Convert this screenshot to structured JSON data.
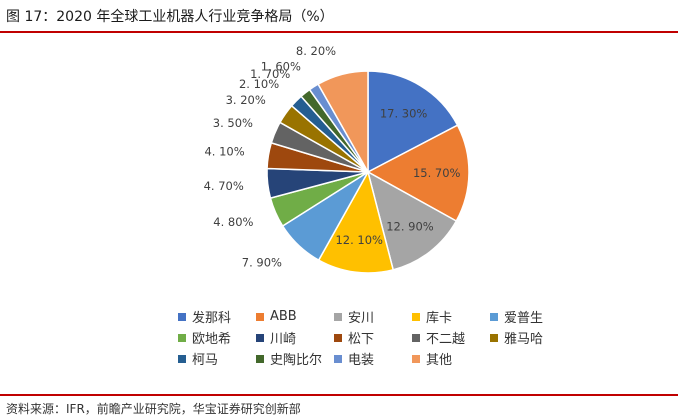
{
  "figure": {
    "title": "图 17：2020 年全球工业机器人行业竞争格局（%）",
    "source": "资料来源：IFR，前瞻产业研究院，华宝证券研究创新部"
  },
  "chart_data": {
    "type": "pie",
    "title": "",
    "legend_position": "bottom",
    "slices": [
      {
        "name": "发那科",
        "value": 17.3,
        "label": "17. 30%",
        "color": "#4472C4"
      },
      {
        "name": "ABB",
        "value": 15.7,
        "label": "15. 70%",
        "color": "#ED7D31"
      },
      {
        "name": "安川",
        "value": 12.9,
        "label": "12. 90%",
        "color": "#A5A5A5"
      },
      {
        "name": "库卡",
        "value": 12.1,
        "label": "12. 10%",
        "color": "#FFC000"
      },
      {
        "name": "爱普生",
        "value": 7.9,
        "label": "7. 90%",
        "color": "#5B9BD5"
      },
      {
        "name": "欧地希",
        "value": 4.8,
        "label": "4. 80%",
        "color": "#70AD47"
      },
      {
        "name": "川崎",
        "value": 4.7,
        "label": "4. 70%",
        "color": "#264478"
      },
      {
        "name": "松下",
        "value": 4.1,
        "label": "4. 10%",
        "color": "#9E480E"
      },
      {
        "name": "不二越",
        "value": 3.5,
        "label": "3. 50%",
        "color": "#636363"
      },
      {
        "name": "雅马哈",
        "value": 3.2,
        "label": "3. 20%",
        "color": "#997300"
      },
      {
        "name": "柯马",
        "value": 2.1,
        "label": "2. 10%",
        "color": "#255E91"
      },
      {
        "name": "史陶比尔",
        "value": 1.7,
        "label": "1. 70%",
        "color": "#43682B"
      },
      {
        "name": "电装",
        "value": 1.6,
        "label": "1. 60%",
        "color": "#698ED0"
      },
      {
        "name": "其他",
        "value": 8.2,
        "label": "8. 20%",
        "color": "#F1975A"
      }
    ]
  }
}
